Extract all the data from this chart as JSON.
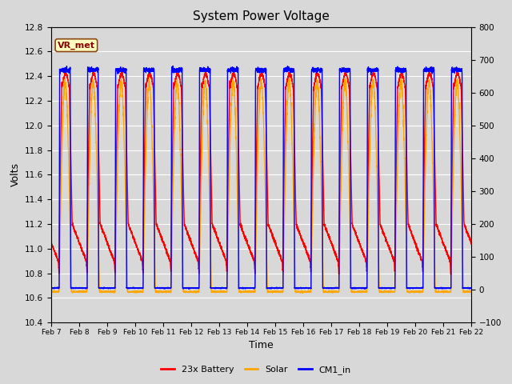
{
  "title": "System Power Voltage",
  "xlabel": "Time",
  "ylabel_left": "Volts",
  "ylim_left": [
    10.4,
    12.8
  ],
  "ylim_right": [
    -100,
    800
  ],
  "yticks_left": [
    10.4,
    10.6,
    10.8,
    11.0,
    11.2,
    11.4,
    11.6,
    11.8,
    12.0,
    12.2,
    12.4,
    12.6,
    12.8
  ],
  "yticks_right": [
    -100,
    0,
    100,
    200,
    300,
    400,
    500,
    600,
    700,
    800
  ],
  "xtick_labels": [
    "Feb 7",
    "Feb 8",
    "Feb 9",
    "Feb 10",
    "Feb 11",
    "Feb 12",
    "Feb 13",
    "Feb 14",
    "Feb 15",
    "Feb 16",
    "Feb 17",
    "Feb 18",
    "Feb 19",
    "Feb 20",
    "Feb 21",
    "Feb 22"
  ],
  "colors": {
    "battery": "#FF0000",
    "solar": "#FFA500",
    "cm1": "#0000FF"
  },
  "legend_labels": [
    "23x Battery",
    "Solar",
    "CM1_in"
  ],
  "annotation_text": "VR_met",
  "annotation_bg": "#FFFFC0",
  "annotation_border": "#8B4513",
  "bg_color": "#D8D8D8",
  "plot_bg": "#D8D8D8",
  "line_width": 1.0,
  "grid_color": "#FFFFFF"
}
